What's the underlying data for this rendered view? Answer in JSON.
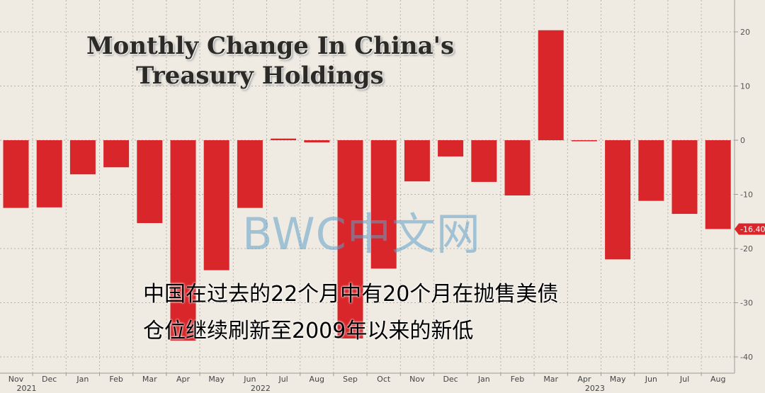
{
  "chart_data": {
    "type": "bar",
    "title_lines": [
      "Monthly Change In China's",
      "Treasury Holdings"
    ],
    "categories": [
      "Nov",
      "Dec",
      "Jan",
      "Feb",
      "Mar",
      "Apr",
      "May",
      "Jun",
      "Jul",
      "Aug",
      "Sep",
      "Oct",
      "Nov",
      "Dec",
      "Jan",
      "Feb",
      "Mar",
      "Apr",
      "May",
      "Jun",
      "Jul",
      "Aug"
    ],
    "values": [
      -12.5,
      -12.4,
      -6.3,
      -5.0,
      -15.3,
      -37.0,
      -24.0,
      -12.5,
      0.3,
      -0.4,
      -36.6,
      -23.7,
      -7.6,
      -3.0,
      -7.7,
      -10.2,
      20.3,
      -0.2,
      -22.0,
      -11.2,
      -13.6,
      -16.4
    ],
    "years": [
      {
        "label": "2021",
        "under_index": 0
      },
      {
        "label": "2022",
        "under_index": 7
      },
      {
        "label": "2023",
        "under_index": 17
      }
    ],
    "yticks": [
      20,
      10,
      0,
      -10,
      -20,
      -30,
      -40
    ],
    "ylim": [
      -42,
      26
    ],
    "last_value_label": "-16.40",
    "bar_color": "#d9262a",
    "grid": true
  },
  "watermark": "BWC中文网",
  "caption_lines": [
    "中国在过去的22个月中有20个月在抛售美债",
    "仓位继续刷新至2009年以来的新低"
  ]
}
